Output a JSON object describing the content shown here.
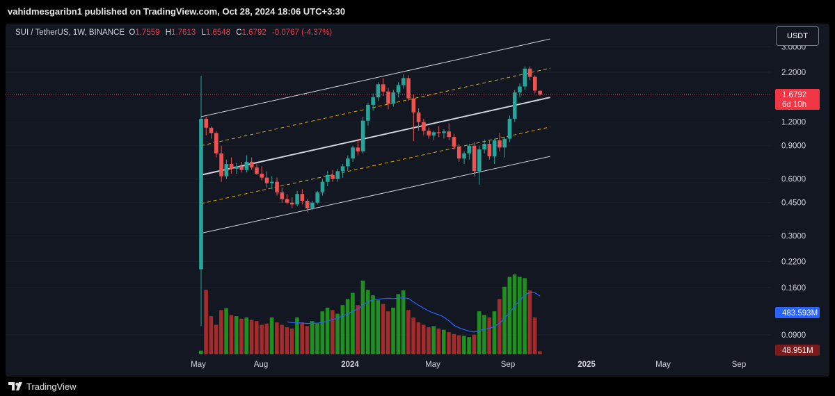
{
  "header": {
    "published_text": "vahidmesgaribn1 published on TradingView.com, Oct 28, 2024 18:06 UTC+3:30"
  },
  "legend": {
    "symbol": "SUI / TetherUS, 1W, BINANCE",
    "open_label": "O",
    "open": "1.7559",
    "high_label": "H",
    "high": "1.7613",
    "low_label": "L",
    "low": "1.6548",
    "close_label": "C",
    "close": "1.6792",
    "change": "-0.0767 (-4.37%)"
  },
  "currency_button": "USDT",
  "price_axis": {
    "labels": [
      "3.0000",
      "2.2000",
      "1.2000",
      "0.9000",
      "0.6000",
      "0.4500",
      "0.3000",
      "0.2200",
      "0.1600",
      "0.0900"
    ],
    "last_price": "1.6792",
    "countdown": "6d 10h",
    "volume_ma_label": "483.593M",
    "volume_label": "48.951M"
  },
  "time_axis": {
    "labels": [
      "May",
      "Aug",
      "2024",
      "May",
      "Sep",
      "2025",
      "May",
      "Sep"
    ]
  },
  "footer": {
    "brand": "TradingView"
  },
  "colors": {
    "background": "#131722",
    "up": "#26a69a",
    "down": "#ef5350",
    "volume_up": "#1f8f1f",
    "volume_down": "#a52a2a",
    "channel": "#d1d4dc",
    "channel_mid": "#e0a800",
    "volume_ma": "#2962ff",
    "last_price": "#f23645"
  },
  "chart_data": {
    "type": "candlestick",
    "title": "SUI / TetherUS, 1W, BINANCE",
    "scale": "log",
    "ylim": [
      0.08,
      3.4
    ],
    "x_ticks": [
      "May",
      "Aug",
      "2024",
      "May",
      "Sep",
      "2025",
      "May",
      "Sep"
    ],
    "y_ticks": [
      3.0,
      2.2,
      1.2,
      0.9,
      0.6,
      0.45,
      0.3,
      0.22,
      0.16,
      0.09
    ],
    "ohlc": [
      [
        0.2,
        2.1,
        0.1,
        1.25
      ],
      [
        1.25,
        1.28,
        1.02,
        1.12
      ],
      [
        1.12,
        1.14,
        0.98,
        1.05
      ],
      [
        1.05,
        1.07,
        0.78,
        0.82
      ],
      [
        0.82,
        0.9,
        0.58,
        0.62
      ],
      [
        0.62,
        0.76,
        0.6,
        0.72
      ],
      [
        0.72,
        0.78,
        0.64,
        0.68
      ],
      [
        0.68,
        0.73,
        0.64,
        0.7
      ],
      [
        0.7,
        0.74,
        0.65,
        0.67
      ],
      [
        0.67,
        0.8,
        0.65,
        0.74
      ],
      [
        0.74,
        0.78,
        0.67,
        0.69
      ],
      [
        0.69,
        0.72,
        0.63,
        0.64
      ],
      [
        0.64,
        0.7,
        0.59,
        0.61
      ],
      [
        0.61,
        0.66,
        0.54,
        0.57
      ],
      [
        0.57,
        0.62,
        0.53,
        0.58
      ],
      [
        0.58,
        0.61,
        0.49,
        0.51
      ],
      [
        0.51,
        0.54,
        0.45,
        0.47
      ],
      [
        0.47,
        0.5,
        0.44,
        0.45
      ],
      [
        0.45,
        0.48,
        0.42,
        0.44
      ],
      [
        0.44,
        0.52,
        0.43,
        0.5
      ],
      [
        0.5,
        0.53,
        0.44,
        0.46
      ],
      [
        0.46,
        0.47,
        0.4,
        0.42
      ],
      [
        0.42,
        0.46,
        0.41,
        0.45
      ],
      [
        0.45,
        0.52,
        0.44,
        0.51
      ],
      [
        0.51,
        0.6,
        0.49,
        0.58
      ],
      [
        0.58,
        0.66,
        0.55,
        0.63
      ],
      [
        0.63,
        0.67,
        0.58,
        0.6
      ],
      [
        0.6,
        0.68,
        0.58,
        0.66
      ],
      [
        0.66,
        0.72,
        0.61,
        0.7
      ],
      [
        0.7,
        0.8,
        0.66,
        0.77
      ],
      [
        0.77,
        0.9,
        0.74,
        0.88
      ],
      [
        0.88,
        0.98,
        0.8,
        0.84
      ],
      [
        0.84,
        1.28,
        0.82,
        1.22
      ],
      [
        1.22,
        1.52,
        1.15,
        1.48
      ],
      [
        1.48,
        1.7,
        1.38,
        1.62
      ],
      [
        1.62,
        1.95,
        1.55,
        1.9
      ],
      [
        1.9,
        2.05,
        1.65,
        1.74
      ],
      [
        1.74,
        1.82,
        1.4,
        1.5
      ],
      [
        1.5,
        1.78,
        1.45,
        1.72
      ],
      [
        1.72,
        1.95,
        1.62,
        1.88
      ],
      [
        1.88,
        2.15,
        1.8,
        2.05
      ],
      [
        2.05,
        2.12,
        1.55,
        1.6
      ],
      [
        1.6,
        1.68,
        0.95,
        1.35
      ],
      [
        1.35,
        1.42,
        1.08,
        1.2
      ],
      [
        1.2,
        1.25,
        1.02,
        1.08
      ],
      [
        1.08,
        1.12,
        0.98,
        1.02
      ],
      [
        1.02,
        1.08,
        0.96,
        1.06
      ],
      [
        1.06,
        1.14,
        1.0,
        1.05
      ],
      [
        1.05,
        1.1,
        0.98,
        1.07
      ],
      [
        1.07,
        1.18,
        0.96,
        1.0
      ],
      [
        1.0,
        1.04,
        0.86,
        0.89
      ],
      [
        0.89,
        0.92,
        0.74,
        0.77
      ],
      [
        0.77,
        0.84,
        0.72,
        0.82
      ],
      [
        0.82,
        0.92,
        0.76,
        0.9
      ],
      [
        0.9,
        0.94,
        0.62,
        0.66
      ],
      [
        0.66,
        0.9,
        0.56,
        0.86
      ],
      [
        0.86,
        0.97,
        0.82,
        0.92
      ],
      [
        0.92,
        0.96,
        0.76,
        0.79
      ],
      [
        0.79,
        0.98,
        0.72,
        0.96
      ],
      [
        0.96,
        1.05,
        0.84,
        0.88
      ],
      [
        0.88,
        1.0,
        0.78,
        0.98
      ],
      [
        0.98,
        1.3,
        0.94,
        1.25
      ],
      [
        1.25,
        1.78,
        1.2,
        1.72
      ],
      [
        1.72,
        1.92,
        1.62,
        1.85
      ],
      [
        1.85,
        2.36,
        1.78,
        2.3
      ],
      [
        2.3,
        2.36,
        2.0,
        2.08
      ],
      [
        2.08,
        2.12,
        1.7,
        1.76
      ],
      [
        1.7559,
        1.7613,
        1.6548,
        1.6792
      ]
    ],
    "volume_millions": [
      60,
      1050,
      620,
      480,
      720,
      750,
      640,
      620,
      580,
      600,
      560,
      540,
      480,
      500,
      600,
      520,
      480,
      440,
      420,
      600,
      520,
      460,
      540,
      500,
      700,
      760,
      720,
      660,
      800,
      900,
      1000,
      800,
      1200,
      1050,
      960,
      880,
      820,
      700,
      760,
      980,
      1040,
      720,
      600,
      520,
      480,
      440,
      460,
      420,
      400,
      360,
      330,
      310,
      300,
      280,
      320,
      700,
      640,
      600,
      700,
      900,
      1100,
      1260,
      1300,
      1260,
      1240,
      1040,
      600,
      48.951
    ],
    "volume_ma_millions": 483.593,
    "channel": {
      "upper": [
        [
          0,
          1.28
        ],
        [
          69,
          3.3
        ]
      ],
      "median": [
        [
          0,
          0.63
        ],
        [
          69,
          1.62
        ]
      ],
      "lower": [
        [
          0,
          0.31
        ],
        [
          69,
          0.79
        ]
      ],
      "upper_mid": [
        [
          0,
          0.9
        ],
        [
          69,
          2.31
        ]
      ],
      "lower_mid": [
        [
          0,
          0.445
        ],
        [
          69,
          1.13
        ]
      ]
    },
    "last_price": 1.6792
  }
}
